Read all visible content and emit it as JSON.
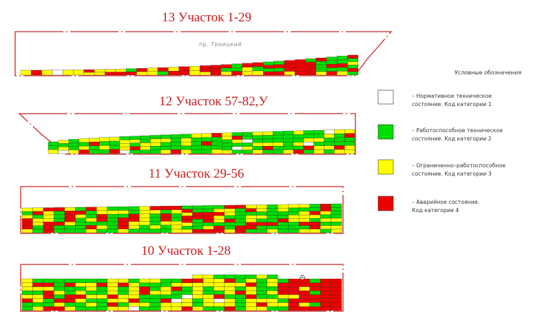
{
  "sections": [
    {
      "title": "13 Участок 1-29",
      "street": "пр. Троицкий"
    },
    {
      "title": "12 Участок 57-82,У"
    },
    {
      "title": "11 Участок 29-56"
    },
    {
      "title": "10 Участок 1-28"
    }
  ],
  "legend": {
    "title": "Условные обозначения",
    "items": [
      {
        "line1": "–  Нормативное техническое",
        "line2": "состояние. Код категории 1",
        "color": "#ffffff"
      },
      {
        "line1": "–  Работоспособное техническое",
        "line2": "состояние. Код категории 2",
        "color": "#00dd00"
      },
      {
        "line1": "–  Ограниченно–работоспособное",
        "line2": "состояние. Код категории 3",
        "color": "#ffff00"
      },
      {
        "line1": "–  Аварийное состояние.",
        "line2": "Код категории 4",
        "color": "#ee0000"
      }
    ]
  },
  "colors": {
    "category_1": "#ffffff",
    "category_2": "#00dd00",
    "category_3": "#ffff00",
    "category_4": "#ee0000",
    "outline": "#cc2222"
  }
}
